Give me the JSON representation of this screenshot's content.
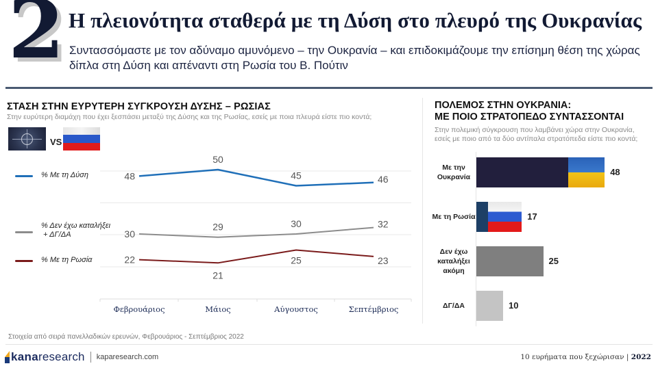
{
  "header": {
    "number": "2",
    "title": "Η πλειονότητα σταθερά με τη Δύση στο πλευρό της Ουκρανίας",
    "subtitle_line1": "Συντασσόμαστε με τον αδύναμο αμυνόμενο – την Ουκρανία – και επιδοκιμάζουμε την επίσημη θέση της χώρας",
    "subtitle_line2": "δίπλα στη Δύση και απέναντι στη Ρωσία του Β. Πούτιν"
  },
  "left_panel": {
    "title": "ΣΤΑΣΗ ΣΤΗΝ ΕΥΡΥΤΕΡΗ ΣΥΓΚΡΟΥΣΗ ΔΥΣΗΣ – ΡΩΣΙΑΣ",
    "question": "Στην ευρύτερη διαμάχη που έχει ξεσπάσει μεταξύ της Δύσης και της Ρωσίας, εσείς με ποια πλευρά είστε πιο κοντά;",
    "vs_label": "VS",
    "flags": [
      "nato-flag",
      "russia-flag"
    ]
  },
  "right_panel": {
    "title_line1": "ΠΟΛΕΜΟΣ ΣΤΗΝ ΟΥΚΡΑΝΙΑ:",
    "title_line2": "ΜΕ ΠΟΙΟ ΣΤΡΑΤΟΠΕΔΟ ΣΥΝΤΑΣΣΟΝΤΑΙ",
    "question_line1": "Στην πολεμική σύγκρουση που λαμβάνει χώρα στην Ουκρανία,",
    "question_line2": "εσείς με ποιο από τα δύο αντίπαλα στρατόπεδα είστε πιο κοντά;"
  },
  "chart_data": [
    {
      "type": "line",
      "title": "ΣΤΑΣΗ ΣΤΗΝ ΕΥΡΥΤΕΡΗ ΣΥΓΚΡΟΥΣΗ ΔΥΣΗΣ – ΡΩΣΙΑΣ",
      "categories": [
        "Φεβρουάριος",
        "Μάιος",
        "Αύγουστος",
        "Σεπτέμβριος"
      ],
      "series": [
        {
          "name": "% Με τη Δύση",
          "legend_lines": [
            "% Με τη Δύση"
          ],
          "color": "#1f6fb8",
          "values": [
            48,
            50,
            45,
            46
          ],
          "label_pos": [
            "left",
            "above",
            "above",
            "right"
          ]
        },
        {
          "name": "% Δεν έχω καταλήξει + ΔΓ/ΔΑ",
          "legend_lines": [
            "% Δεν έχω καταλήξει",
            " + ΔΓ/ΔΑ"
          ],
          "color": "#8c8c8c",
          "values": [
            30,
            29,
            30,
            32
          ],
          "label_pos": [
            "left",
            "above",
            "above",
            "right"
          ]
        },
        {
          "name": "% Με τη Ρωσία",
          "legend_lines": [
            "% Με τη Ρωσία"
          ],
          "color": "#7a1a1a",
          "values": [
            22,
            21,
            25,
            23
          ],
          "label_pos": [
            "left",
            "below",
            "below",
            "right"
          ]
        }
      ],
      "xlabel": "",
      "ylabel": "",
      "grid": true,
      "legend": "left"
    },
    {
      "type": "bar",
      "orientation": "horizontal",
      "title": "ΠΟΛΕΜΟΣ ΣΤΗΝ ΟΥΚΡΑΝΙΑ: ΜΕ ΠΟΙΟ ΣΤΡΑΤΟΠΕΔΟ ΣΥΝΤΑΣΣΟΝΤΑΙ",
      "categories": [
        {
          "lines": [
            "Με την",
            "Ουκρανία"
          ]
        },
        {
          "lines": [
            "Με τη Ρωσία"
          ]
        },
        {
          "lines": [
            "Δεν έχω",
            "καταλήξει",
            "ακόμη"
          ]
        },
        {
          "lines": [
            "ΔΓ/ΔΑ"
          ]
        }
      ],
      "values": [
        48,
        17,
        25,
        10
      ],
      "colors": [
        "#221f3d",
        "#1d3f66",
        "#7f7f7f",
        "#c4c4c4"
      ],
      "fills": [
        "ukraine-flag",
        "russia-flag",
        "solid",
        "solid"
      ],
      "xlim": [
        0,
        50
      ]
    }
  ],
  "footer": {
    "source": "Στοιχεία από σειρά πανελλαδικών ερευνών, Φεβρουάριος - Σεπτέμβριος 2022",
    "logo_kapa": "kana",
    "logo_research": "research",
    "url": "kaparesearch.com",
    "series_title": "10 ευρήματα που ξεχώρισαν",
    "year": "2022"
  }
}
